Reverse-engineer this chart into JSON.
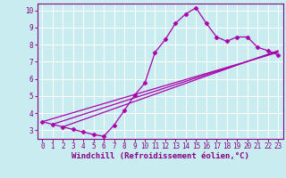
{
  "xlabel": "Windchill (Refroidissement éolien,°C)",
  "xlim": [
    -0.5,
    23.5
  ],
  "ylim": [
    2.5,
    10.4
  ],
  "xticks": [
    0,
    1,
    2,
    3,
    4,
    5,
    6,
    7,
    8,
    9,
    10,
    11,
    12,
    13,
    14,
    15,
    16,
    17,
    18,
    19,
    20,
    21,
    22,
    23
  ],
  "yticks": [
    3,
    4,
    5,
    6,
    7,
    8,
    9,
    10
  ],
  "background_color": "#c8ecf0",
  "grid_color": "#aed6dc",
  "line_color": "#aa00aa",
  "curves": [
    {
      "x": [
        0,
        1,
        2,
        3,
        4,
        5,
        6,
        7,
        8,
        9,
        10,
        11,
        12,
        13,
        14,
        15,
        16,
        17,
        18,
        19,
        20,
        21,
        22,
        23
      ],
      "y": [
        3.5,
        3.35,
        3.2,
        3.05,
        2.9,
        2.75,
        2.65,
        3.3,
        4.15,
        5.05,
        5.75,
        7.55,
        8.3,
        9.25,
        9.8,
        10.15,
        9.25,
        8.45,
        8.2,
        8.45,
        8.45,
        7.85,
        7.65,
        7.4
      ],
      "has_markers": true
    },
    {
      "x": [
        0,
        23
      ],
      "y": [
        3.5,
        7.55
      ],
      "has_markers": false
    },
    {
      "x": [
        1,
        23
      ],
      "y": [
        3.35,
        7.6
      ],
      "has_markers": false
    },
    {
      "x": [
        2,
        23
      ],
      "y": [
        3.2,
        7.65
      ],
      "has_markers": false
    }
  ],
  "marker": "D",
  "markersize": 2.5,
  "linewidth": 0.9,
  "tick_fontsize": 5.5,
  "xlabel_fontsize": 6.5,
  "axis_color": "#880088",
  "spine_color": "#880088"
}
